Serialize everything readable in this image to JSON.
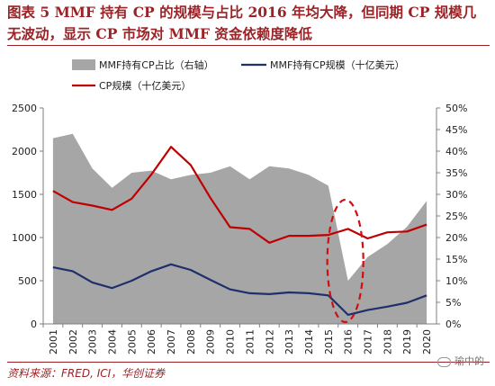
{
  "title": "图表 5   MMF 持有 CP 的规模与占比 2016 年均大降，但同期 CP 规模几无波动，显示 CP 市场对 MMF 资金依赖度降低",
  "source": "资料来源：FRED, ICI，华创证券",
  "watermark": "瑜中的",
  "colors": {
    "title": "#9b2226",
    "share_area": "#a6a6a6",
    "mmf_cp_line": "#1f2f6b",
    "cp_line": "#c00000",
    "highlight_ellipse": "#d01010"
  },
  "chart_data": {
    "type": "area+line",
    "categories": [
      "2001",
      "2002",
      "2003",
      "2004",
      "2005",
      "2006",
      "2007",
      "2008",
      "2009",
      "2010",
      "2011",
      "2012",
      "2013",
      "2014",
      "2015",
      "2016",
      "2017",
      "2018",
      "2019",
      "2020"
    ],
    "left_axis": {
      "ylim": [
        0,
        2500
      ],
      "ticks": [
        "0",
        "500",
        "1000",
        "1500",
        "2000",
        "2500"
      ]
    },
    "right_axis": {
      "ylim": [
        0,
        50
      ],
      "ticks": [
        "0%",
        "5%",
        "10%",
        "15%",
        "20%",
        "25%",
        "30%",
        "35%",
        "40%",
        "45%",
        "50%"
      ]
    },
    "series": [
      {
        "name": "MMF持有CP占比（右轴）",
        "type": "area",
        "axis": "right",
        "values": [
          43,
          44,
          36,
          31.5,
          35,
          35.5,
          33.5,
          34.5,
          35,
          36.5,
          33.5,
          36.5,
          36,
          34.5,
          32,
          10,
          15.5,
          18.5,
          22.5,
          28.5
        ]
      },
      {
        "name": "MMF持有CP规模（十亿美元）",
        "type": "line",
        "axis": "left",
        "values": [
          655,
          610,
          480,
          415,
          500,
          610,
          690,
          625,
          510,
          400,
          355,
          345,
          365,
          355,
          330,
          105,
          160,
          200,
          245,
          330
        ]
      },
      {
        "name": "CP规模（十亿美元）",
        "type": "line",
        "axis": "left",
        "values": [
          1540,
          1410,
          1370,
          1320,
          1450,
          1730,
          2050,
          1840,
          1460,
          1120,
          1100,
          940,
          1020,
          1020,
          1030,
          1100,
          990,
          1060,
          1070,
          1150
        ]
      }
    ],
    "annotation": {
      "type": "dashed-ellipse",
      "around": "2016"
    },
    "legend": "top",
    "grid": false
  }
}
